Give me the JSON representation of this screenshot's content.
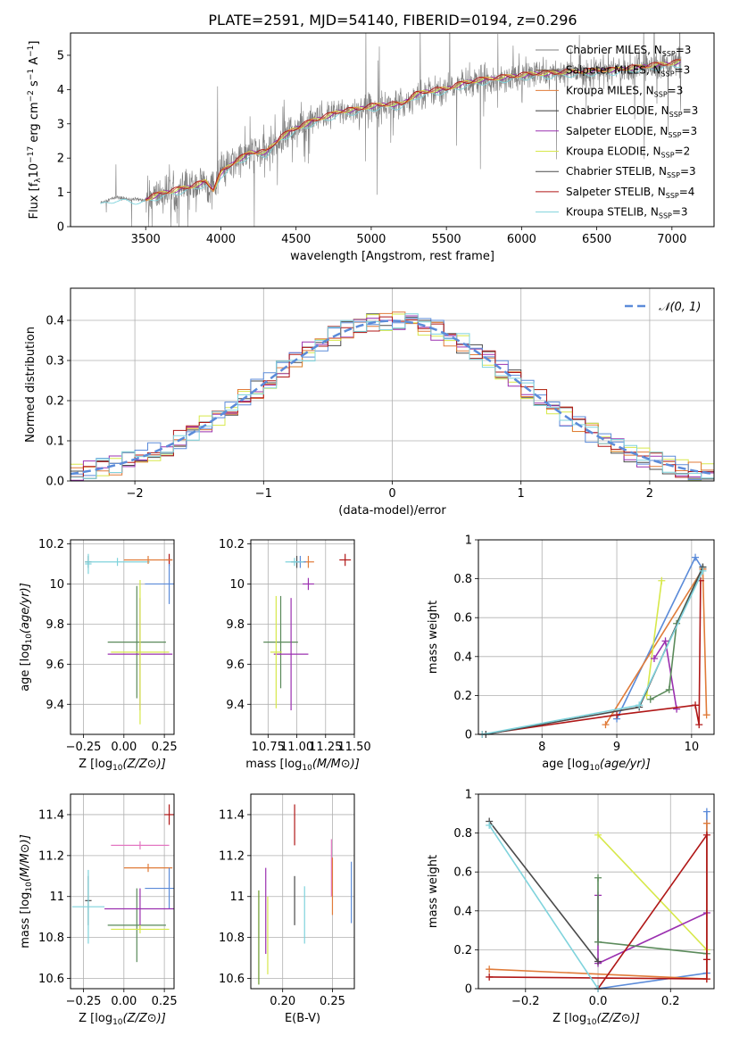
{
  "figure_title": "PLATE=2591, MJD=54140, FIBERID=0194, z=0.296",
  "colors": {
    "Chabrier MILES": "#7f7f7f",
    "Salpeter MILES": "#6b4a32",
    "Kroupa MILES": "#e07b39",
    "Chabrier ELODIE": "#3b3b3b",
    "Salpeter ELODIE": "#9b30b0",
    "Kroupa ELODIE": "#d7e84a",
    "Chabrier STELIB": "#4a4a4a",
    "Salpeter STELIB": "#b01717",
    "Kroupa STELIB": "#7fd3dc",
    "extra_blue": "#5b8bd9",
    "extra_green": "#5a8a5a",
    "extra_pink": "#e377c2",
    "extra_olive": "#6a9a2a",
    "gaussian": "#5b8bd9"
  },
  "chart_data": [
    {
      "id": "spectrum",
      "type": "line",
      "title": "PLATE=2591, MJD=54140, FIBERID=0194, z=0.296",
      "xlabel": "wavelength [Angstrom, rest frame]",
      "ylabel": "Flux [f_λ 10^-17 erg cm^-2 s^-1 A^-1]",
      "xlim": [
        3000,
        7280
      ],
      "ylim": [
        0,
        5.65
      ],
      "xticks": [
        3500,
        4000,
        4500,
        5000,
        5500,
        6000,
        6500,
        7000
      ],
      "yticks": [
        0,
        1,
        2,
        3,
        4,
        5
      ],
      "grid": false,
      "legend_position": "right",
      "legend": [
        {
          "label": "Chabrier MILES, N",
          "sub": "SSP",
          "suffix": "=3"
        },
        {
          "label": "Salpeter MILES, N",
          "sub": "SSP",
          "suffix": "=3"
        },
        {
          "label": "Kroupa MILES, N",
          "sub": "SSP",
          "suffix": "=3"
        },
        {
          "label": "Chabrier ELODIE, N",
          "sub": "SSP",
          "suffix": "=3"
        },
        {
          "label": "Salpeter ELODIE, N",
          "sub": "SSP",
          "suffix": "=3"
        },
        {
          "label": "Kroupa ELODIE, N",
          "sub": "SSP",
          "suffix": "=2"
        },
        {
          "label": "Chabrier STELIB, N",
          "sub": "SSP",
          "suffix": "=3"
        },
        {
          "label": "Salpeter STELIB, N",
          "sub": "SSP",
          "suffix": "=4"
        },
        {
          "label": "Kroupa STELIB, N",
          "sub": "SSP",
          "suffix": "=3"
        }
      ],
      "continuum": [
        [
          3200,
          0.7
        ],
        [
          3300,
          0.85
        ],
        [
          3400,
          0.8
        ],
        [
          3500,
          0.78
        ],
        [
          3600,
          0.95
        ],
        [
          3700,
          1.05
        ],
        [
          3800,
          1.15
        ],
        [
          3900,
          1.3
        ],
        [
          3950,
          1.05
        ],
        [
          4000,
          1.55
        ],
        [
          4100,
          1.9
        ],
        [
          4200,
          2.15
        ],
        [
          4300,
          2.15
        ],
        [
          4400,
          2.6
        ],
        [
          4500,
          2.85
        ],
        [
          4600,
          3.05
        ],
        [
          4700,
          3.2
        ],
        [
          4800,
          3.35
        ],
        [
          4900,
          3.4
        ],
        [
          5000,
          3.5
        ],
        [
          5100,
          3.55
        ],
        [
          5200,
          3.55
        ],
        [
          5300,
          3.85
        ],
        [
          5400,
          3.95
        ],
        [
          5500,
          4.0
        ],
        [
          5600,
          4.15
        ],
        [
          5700,
          4.25
        ],
        [
          5800,
          4.3
        ],
        [
          5900,
          4.35
        ],
        [
          6000,
          4.4
        ],
        [
          6100,
          4.45
        ],
        [
          6200,
          4.45
        ],
        [
          6300,
          4.5
        ],
        [
          6400,
          4.5
        ],
        [
          6500,
          4.55
        ],
        [
          6600,
          4.55
        ],
        [
          6700,
          4.6
        ],
        [
          6800,
          4.65
        ],
        [
          6900,
          4.7
        ],
        [
          7000,
          4.75
        ],
        [
          7060,
          4.8
        ]
      ],
      "x_range_data": [
        3200,
        7060
      ]
    },
    {
      "id": "residuals",
      "type": "histogram",
      "xlabel": "(data-model)/error",
      "ylabel": "Normed distribution",
      "xlim": [
        -2.5,
        2.5
      ],
      "ylim": [
        0,
        0.48
      ],
      "xticks": [
        -2,
        -1,
        0,
        1,
        2
      ],
      "yticks": [
        0.0,
        0.1,
        0.2,
        0.3,
        0.4
      ],
      "grid": true,
      "legend_position": "top-right",
      "legend": [
        {
          "label": "𝒩(0, 1)"
        }
      ],
      "bin_width": 0.1,
      "gaussian": {
        "mean": 0,
        "sigma": 1
      }
    },
    {
      "id": "age_vs_z",
      "type": "errorbar",
      "xlabel": "Z [log10(Z/Z⊙)]",
      "ylabel": "age  [log10(age/yr)]",
      "xlim": [
        -0.33,
        0.31
      ],
      "ylim": [
        9.25,
        10.22
      ],
      "xticks": [
        -0.25,
        0.0,
        0.25
      ],
      "xticklabels": [
        "−0.25",
        "0.00",
        "0.25"
      ],
      "yticks": [
        9.4,
        9.6,
        9.8,
        10.0,
        10.2
      ],
      "grid": true,
      "points": [
        {
          "x": -0.22,
          "y": 10.11,
          "xerr": 0.02,
          "yerr": 0.03,
          "c": "Chabrier STELIB"
        },
        {
          "x": -0.04,
          "y": 10.11,
          "xerr": 0.2,
          "yerr": 0.02,
          "c": "Kroupa STELIB"
        },
        {
          "x": 0.28,
          "y": 10.12,
          "xerr": 0.02,
          "yerr": 0.03,
          "c": "Salpeter STELIB"
        },
        {
          "x": 0.15,
          "y": 10.12,
          "xerr": 0.15,
          "yerr": 0.02,
          "c": "Kroupa MILES"
        },
        {
          "x": 0.28,
          "y": 10.0,
          "xerr": 0.15,
          "yerr": 0.1,
          "c": "extra_blue"
        },
        {
          "x": 0.08,
          "y": 9.71,
          "xerr": 0.18,
          "yerr": 0.28,
          "c": "extra_green"
        },
        {
          "x": 0.1,
          "y": 9.65,
          "xerr": 0.2,
          "yerr": 0.28,
          "c": "Salpeter ELODIE"
        },
        {
          "x": 0.1,
          "y": 9.66,
          "xerr": 0.18,
          "yerr": 0.36,
          "c": "Kroupa ELODIE"
        },
        {
          "x": -0.22,
          "y": 10.1,
          "xerr": 0.02,
          "yerr": 0.05,
          "c": "Kroupa STELIB"
        }
      ]
    },
    {
      "id": "age_vs_mass",
      "type": "errorbar",
      "xlabel": "mass [log10(M/M⊙)]",
      "ylabel": "",
      "xlim": [
        10.6,
        11.5
      ],
      "ylim": [
        9.25,
        10.22
      ],
      "xticks": [
        10.75,
        11.0,
        11.25,
        11.5
      ],
      "xticklabels": [
        "10.75",
        "11.00",
        "11.25",
        "11.50"
      ],
      "yticks": [
        9.4,
        9.6,
        9.8,
        10.0,
        10.2
      ],
      "grid": true,
      "points": [
        {
          "x": 11.42,
          "y": 10.12,
          "xerr": 0.05,
          "yerr": 0.03,
          "c": "Salpeter STELIB"
        },
        {
          "x": 11.1,
          "y": 10.11,
          "xerr": 0.05,
          "yerr": 0.03,
          "c": "Kroupa MILES"
        },
        {
          "x": 11.0,
          "y": 10.11,
          "xerr": 0.05,
          "yerr": 0.03,
          "c": "Chabrier STELIB"
        },
        {
          "x": 11.03,
          "y": 10.11,
          "xerr": 0.05,
          "yerr": 0.03,
          "c": "extra_blue"
        },
        {
          "x": 10.98,
          "y": 10.11,
          "xerr": 0.08,
          "yerr": 0.02,
          "c": "Kroupa STELIB"
        },
        {
          "x": 11.1,
          "y": 10.0,
          "xerr": 0.05,
          "yerr": 0.03,
          "c": "Salpeter ELODIE"
        },
        {
          "x": 10.86,
          "y": 9.71,
          "xerr": 0.15,
          "yerr": 0.23,
          "c": "extra_green"
        },
        {
          "x": 10.95,
          "y": 9.65,
          "xerr": 0.15,
          "yerr": 0.28,
          "c": "Salpeter ELODIE"
        },
        {
          "x": 10.82,
          "y": 9.66,
          "xerr": 0.05,
          "yerr": 0.28,
          "c": "Kroupa ELODIE"
        }
      ]
    },
    {
      "id": "weight_vs_age",
      "type": "line",
      "xlabel": "age  [log10(age/yr)]",
      "ylabel": "mass weight",
      "xlim": [
        7.15,
        10.3
      ],
      "ylim": [
        0,
        1.0
      ],
      "xticks": [
        8,
        9,
        10
      ],
      "yticks": [
        0.0,
        0.2,
        0.4,
        0.6,
        0.8,
        1.0
      ],
      "grid": true,
      "series": [
        {
          "c": "extra_blue",
          "points": [
            [
              9.0,
              0.08
            ],
            [
              10.05,
              0.91
            ],
            [
              10.15,
              0.85
            ]
          ]
        },
        {
          "c": "Kroupa MILES",
          "points": [
            [
              8.85,
              0.05
            ],
            [
              10.15,
              0.85
            ],
            [
              10.2,
              0.1
            ]
          ]
        },
        {
          "c": "Kroupa ELODIE",
          "points": [
            [
              9.4,
              0.2
            ],
            [
              9.6,
              0.79
            ]
          ]
        },
        {
          "c": "Salpeter ELODIE",
          "points": [
            [
              9.5,
              0.39
            ],
            [
              9.65,
              0.48
            ],
            [
              9.8,
              0.13
            ]
          ]
        },
        {
          "c": "extra_green",
          "points": [
            [
              9.45,
              0.18
            ],
            [
              9.7,
              0.23
            ],
            [
              9.8,
              0.57
            ],
            [
              10.15,
              0.86
            ]
          ]
        },
        {
          "c": "Salpeter STELIB",
          "points": [
            [
              7.2,
              0.0
            ],
            [
              9.0,
              0.1
            ],
            [
              10.05,
              0.15
            ],
            [
              10.1,
              0.05
            ],
            [
              10.12,
              0.79
            ]
          ]
        },
        {
          "c": "Chabrier STELIB",
          "points": [
            [
              7.25,
              0.0
            ],
            [
              9.3,
              0.14
            ],
            [
              10.15,
              0.86
            ]
          ]
        },
        {
          "c": "Kroupa STELIB",
          "points": [
            [
              7.2,
              0.0
            ],
            [
              9.3,
              0.15
            ],
            [
              10.15,
              0.84
            ]
          ]
        }
      ]
    },
    {
      "id": "mass_vs_z",
      "type": "errorbar",
      "xlabel": "Z [log10(Z/Z⊙)]",
      "ylabel": "mass [log10(M/M⊙)]",
      "xlim": [
        -0.33,
        0.31
      ],
      "ylim": [
        10.55,
        11.5
      ],
      "xticks": [
        -0.25,
        0.0,
        0.25
      ],
      "xticklabels": [
        "−0.25",
        "0.00",
        "0.25"
      ],
      "yticks": [
        10.6,
        10.8,
        11.0,
        11.2,
        11.4
      ],
      "grid": true,
      "points": [
        {
          "x": 0.28,
          "y": 11.4,
          "xerr": 0.03,
          "yerr": 0.05,
          "c": "Salpeter STELIB"
        },
        {
          "x": 0.1,
          "y": 11.25,
          "xerr": 0.18,
          "yerr": 0.02,
          "c": "extra_pink"
        },
        {
          "x": 0.15,
          "y": 11.14,
          "xerr": 0.15,
          "yerr": 0.02,
          "c": "Kroupa MILES"
        },
        {
          "x": -0.22,
          "y": 10.98,
          "xerr": 0.02,
          "yerr": 0.12,
          "c": "Chabrier STELIB"
        },
        {
          "x": 0.28,
          "y": 11.04,
          "xerr": 0.15,
          "yerr": 0.1,
          "c": "extra_blue"
        },
        {
          "x": 0.08,
          "y": 10.86,
          "xerr": 0.18,
          "yerr": 0.18,
          "c": "extra_green"
        },
        {
          "x": 0.1,
          "y": 10.94,
          "xerr": 0.22,
          "yerr": 0.1,
          "c": "Salpeter ELODIE"
        },
        {
          "x": 0.1,
          "y": 10.84,
          "xerr": 0.18,
          "yerr": 0.02,
          "c": "Kroupa ELODIE"
        },
        {
          "x": -0.22,
          "y": 10.95,
          "xerr": 0.1,
          "yerr": 0.18,
          "c": "Kroupa STELIB"
        }
      ]
    },
    {
      "id": "mass_vs_ebv",
      "type": "errorbar",
      "xlabel": "E(B-V)",
      "ylabel": "",
      "xlim": [
        0.168,
        0.272
      ],
      "ylim": [
        10.55,
        11.5
      ],
      "xticks": [
        0.2,
        0.25
      ],
      "xticklabels": [
        "0.20",
        "0.25"
      ],
      "yticks": [
        10.6,
        10.8,
        11.0,
        11.2,
        11.4
      ],
      "grid": true,
      "points": [
        {
          "x": 0.176,
          "y": 10.8,
          "xerr": 0,
          "yerr": 0.23,
          "c": "extra_olive"
        },
        {
          "x": 0.183,
          "y": 10.93,
          "xerr": 0,
          "yerr": 0.21,
          "c": "Salpeter ELODIE"
        },
        {
          "x": 0.185,
          "y": 10.81,
          "xerr": 0,
          "yerr": 0.19,
          "c": "Kroupa ELODIE"
        },
        {
          "x": 0.212,
          "y": 11.35,
          "xerr": 0,
          "yerr": 0.1,
          "c": "Salpeter STELIB"
        },
        {
          "x": 0.212,
          "y": 10.98,
          "xerr": 0,
          "yerr": 0.12,
          "c": "Chabrier STELIB"
        },
        {
          "x": 0.222,
          "y": 10.91,
          "xerr": 0,
          "yerr": 0.14,
          "c": "Kroupa STELIB"
        },
        {
          "x": 0.249,
          "y": 11.14,
          "xerr": 0,
          "yerr": 0.14,
          "c": "extra_pink"
        },
        {
          "x": 0.25,
          "y": 11.05,
          "xerr": 0,
          "yerr": 0.14,
          "c": "Kroupa MILES"
        },
        {
          "x": 0.269,
          "y": 11.02,
          "xerr": 0,
          "yerr": 0.15,
          "c": "extra_blue"
        }
      ]
    },
    {
      "id": "weight_vs_z",
      "type": "line",
      "xlabel": "Z [log10(Z/Z⊙)]",
      "ylabel": "mass weight",
      "xlim": [
        -0.33,
        0.32
      ],
      "ylim": [
        0,
        1.0
      ],
      "xticks": [
        -0.2,
        0.0,
        0.2
      ],
      "xticklabels": [
        "−0.2",
        "0.0",
        "0.2"
      ],
      "yticks": [
        0.0,
        0.2,
        0.4,
        0.6,
        0.8,
        1.0
      ],
      "grid": true,
      "series": [
        {
          "c": "extra_blue",
          "points": [
            [
              0.0,
              0.0
            ],
            [
              0.3,
              0.08
            ],
            [
              0.3,
              0.91
            ]
          ]
        },
        {
          "c": "Kroupa MILES",
          "points": [
            [
              -0.3,
              0.1
            ],
            [
              0.3,
              0.05
            ],
            [
              0.3,
              0.85
            ]
          ]
        },
        {
          "c": "Kroupa ELODIE",
          "points": [
            [
              0.0,
              0.79
            ],
            [
              0.3,
              0.2
            ]
          ]
        },
        {
          "c": "Salpeter ELODIE",
          "points": [
            [
              0.0,
              0.48
            ],
            [
              0.0,
              0.13
            ],
            [
              0.3,
              0.39
            ]
          ]
        },
        {
          "c": "extra_green",
          "points": [
            [
              0.0,
              0.57
            ],
            [
              0.0,
              0.24
            ],
            [
              0.3,
              0.18
            ]
          ]
        },
        {
          "c": "Salpeter STELIB",
          "points": [
            [
              -0.3,
              0.06
            ],
            [
              0.3,
              0.05
            ],
            [
              0.3,
              0.15
            ],
            [
              0.3,
              0.79
            ],
            [
              0.0,
              0.0
            ]
          ]
        },
        {
          "c": "Chabrier STELIB",
          "points": [
            [
              -0.3,
              0.86
            ],
            [
              0.0,
              0.14
            ]
          ]
        },
        {
          "c": "Kroupa STELIB",
          "points": [
            [
              -0.3,
              0.84
            ],
            [
              0.0,
              0.0
            ]
          ]
        }
      ]
    }
  ]
}
